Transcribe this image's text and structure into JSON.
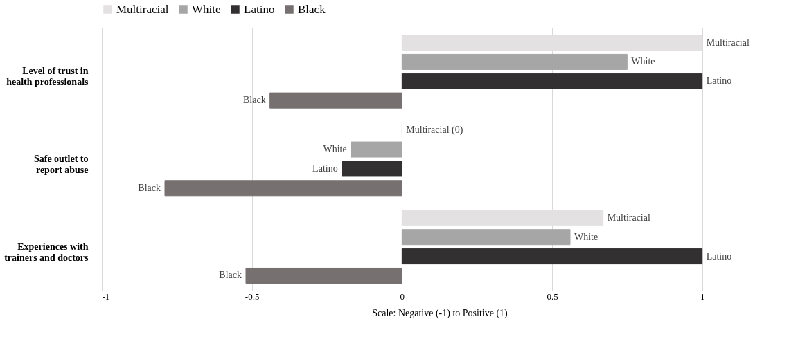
{
  "chart_data": {
    "type": "bar",
    "orientation": "horizontal",
    "xlabel": "Scale: Negative (-1) to Positive (1)",
    "categories": [
      "Level of trust in health professionals",
      "Safe outlet to report abuse",
      "Experiences with trainers and doctors"
    ],
    "series": [
      {
        "name": "Multiracial",
        "color": "#e3e1e1",
        "values": [
          1,
          0,
          0.67
        ],
        "value_labels": [
          "Multiracial",
          "Multiracial (0)",
          "Multiracial"
        ]
      },
      {
        "name": "White",
        "color": "#a6a6a6",
        "values": [
          0.75,
          -0.17,
          0.56
        ],
        "value_labels": [
          "White",
          "White",
          "White"
        ]
      },
      {
        "name": "Latino",
        "color": "#333031",
        "values": [
          1,
          -0.2,
          1
        ],
        "value_labels": [
          "Latino",
          "Latino",
          "Latino"
        ]
      },
      {
        "name": "Black",
        "color": "#767070",
        "values": [
          -0.44,
          -0.79,
          -0.52
        ],
        "value_labels": [
          "Black",
          "Black",
          "Black"
        ]
      }
    ],
    "xlim": [
      -1,
      1.25
    ],
    "xticks": [
      -1,
      -0.5,
      0,
      0.5,
      1
    ],
    "grid": "x",
    "legend": "top"
  }
}
